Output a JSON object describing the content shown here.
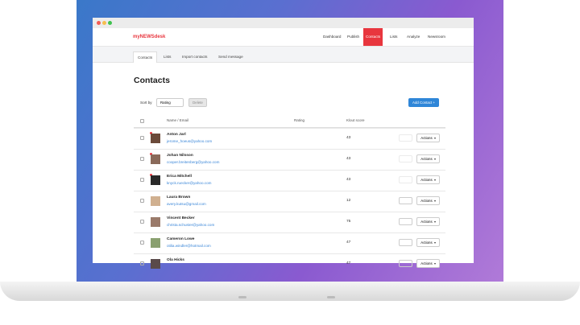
{
  "app": {
    "logo": "myNEWSdesk",
    "nav": [
      "Dashboard",
      "Publish",
      "Contacts",
      "Lists",
      "Analyze",
      "Newsroom"
    ],
    "subnav": [
      "Contacts",
      "Lists",
      "Import contacts",
      "Send message"
    ],
    "heading": "Contacts",
    "sort_label": "Sort by",
    "sort_value": "Rating",
    "delete": "Delete",
    "add_contact": "Add Contact +",
    "table": {
      "headers": [
        "Name / Email",
        "Rating",
        "Klout score"
      ],
      "action": "Actions",
      "rows": [
        [
          "Anton Jarl",
          "jerome_hoeus@yahoo.com",
          43
        ],
        [
          "Johan Nilsson",
          "cooper.breitenberg@yahoo.com",
          43
        ],
        [
          "Erica Mitchell",
          "knyck.ruecker@yahoo.com",
          43
        ],
        [
          "Laura Brown",
          "avery.kutsu@gmail.com",
          12
        ],
        [
          "Vincent Becker",
          "christa.schuster@yahoo.com",
          75
        ],
        [
          "Cameron Lowe",
          "otilia.windler@hotmail.com",
          47
        ],
        [
          "Ola Hicks",
          "",
          47
        ]
      ]
    }
  }
}
